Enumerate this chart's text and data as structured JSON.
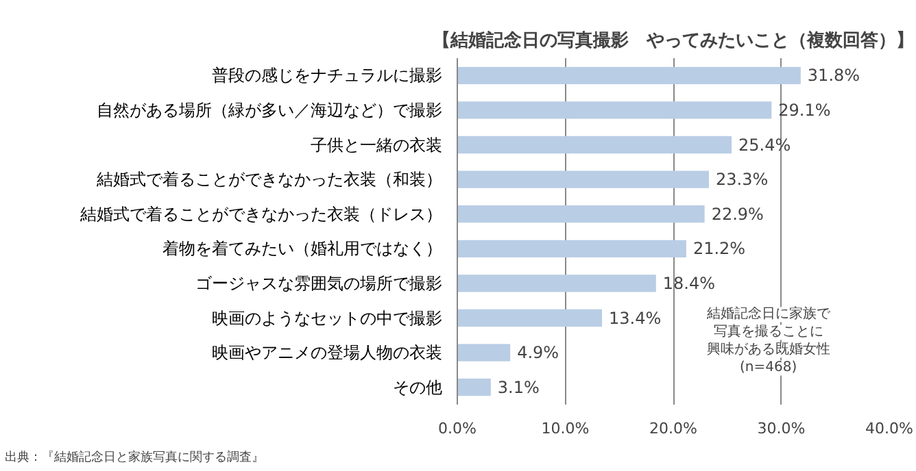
{
  "chart_data": {
    "type": "bar",
    "orientation": "horizontal",
    "title": "【結婚記念日の写真撮影　やってみたいこと（複数回答）】",
    "categories": [
      "普段の感じをナチュラルに撮影",
      "自然がある場所（緑が多い／海辺など）で撮影",
      "子供と一緒の衣装",
      "結婚式で着ることができなかった衣装（和装）",
      "結婚式で着ることができなかった衣装（ドレス）",
      "着物を着てみたい（婚礼用ではなく）",
      "ゴージャスな雰囲気の場所で撮影",
      "映画のようなセットの中で撮影",
      "映画やアニメの登場人物の衣装",
      "その他"
    ],
    "values": [
      31.8,
      29.1,
      25.4,
      23.3,
      22.9,
      21.2,
      18.4,
      13.4,
      4.9,
      3.1
    ],
    "value_labels": [
      "31.8%",
      "29.1%",
      "25.4%",
      "23.3%",
      "22.9%",
      "21.2%",
      "18.4%",
      "13.4%",
      "4.9%",
      "3.1%"
    ],
    "color": "#b9cde5",
    "xlim": [
      0,
      40
    ],
    "xticks": [
      {
        "value": 0,
        "label": "0.0%"
      },
      {
        "value": 10,
        "label": "10.0%"
      },
      {
        "value": 20,
        "label": "20.0%"
      },
      {
        "value": 30,
        "label": "30.0%"
      },
      {
        "value": 40,
        "label": "40.0%"
      }
    ],
    "grid": "x",
    "annotations": [
      "結婚記念日に家族で",
      "写真を撮ることに",
      "興味がある既婚女性",
      "(n=468)",
      "出典：『結婚記念日と家族写真に関する調査』"
    ]
  }
}
